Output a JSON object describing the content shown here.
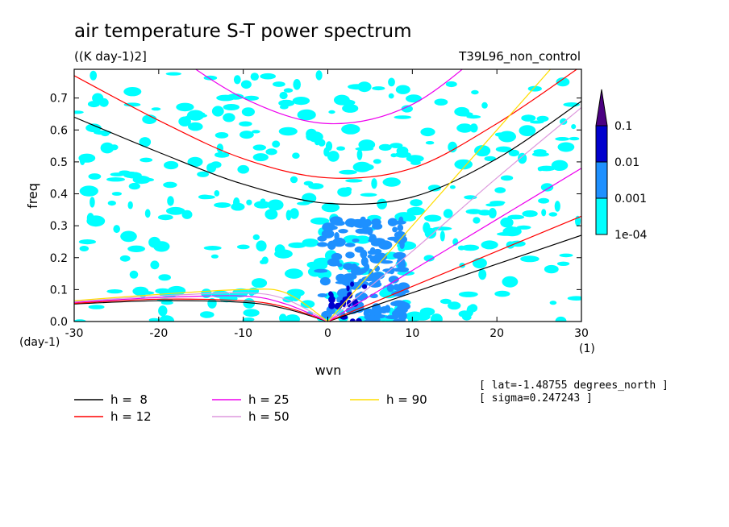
{
  "header": {
    "title": "air temperature S-T power spectrum",
    "units": "((K day-1)2]",
    "experiment": "T39L96_non_control"
  },
  "info": {
    "lat": "[ lat=-1.48755 degrees_north ]",
    "sigma": "[ sigma=0.247243 ]"
  },
  "colors": {
    "shade_1e-04": "#00ffff",
    "shade_0.001": "#1e90ff",
    "shade_0.01": "#0000cd",
    "shade_0.1": "#4b0082",
    "h8": "#000000",
    "h12": "#ff0000",
    "h25": "#ee00ee",
    "h50": "#dd99dd",
    "h90": "#ffdd00"
  },
  "chart_data": {
    "type": "heatmap",
    "title": "air temperature S-T power spectrum",
    "xlabel": "wvn",
    "ylabel": "freq",
    "x_unit_label": "(1)",
    "y_unit_label": "(day-1)",
    "xlim": [
      -30,
      30
    ],
    "ylim": [
      0,
      0.79
    ],
    "x_ticks": [
      -30,
      -20,
      -10,
      0,
      10,
      20,
      30
    ],
    "x_tick_labels": [
      "-30",
      "-20",
      "-10",
      "0",
      "10",
      "20",
      "30"
    ],
    "y_ticks": [
      0,
      0.1,
      0.2,
      0.3,
      0.4,
      0.5,
      0.6,
      0.7
    ],
    "y_tick_labels": [
      "0.0",
      "0.1",
      "0.2",
      "0.3",
      "0.4",
      "0.5",
      "0.6",
      "0.7"
    ],
    "colorbar": {
      "levels": [
        "1e-04",
        "0.001",
        "0.01",
        "0.1"
      ],
      "colors": [
        "#00ffff",
        "#1e90ff",
        "#0000cd",
        "#4b0082"
      ]
    },
    "series": [
      {
        "name": "h =  8",
        "legend": "h =  8",
        "color": "#000000",
        "h": 8
      },
      {
        "name": "h = 12",
        "legend": "h = 12",
        "color": "#ff0000",
        "h": 12
      },
      {
        "name": "h = 25",
        "legend": "h = 25",
        "color": "#ee00ee",
        "h": 25
      },
      {
        "name": "h = 50",
        "legend": "h = 50",
        "color": "#dd99dd",
        "h": 50
      },
      {
        "name": "h = 90",
        "legend": "h = 90",
        "color": "#ffdd00",
        "h": 90
      }
    ],
    "dispersion_curves": [
      {
        "h": 8,
        "kelvin": [
          [
            0,
            0
          ],
          [
            10,
            0.09
          ],
          [
            20,
            0.18
          ],
          [
            30,
            0.27
          ]
        ],
        "ig": [
          [
            -30,
            0.64
          ],
          [
            -20,
            0.53
          ],
          [
            -10,
            0.43
          ],
          [
            0,
            0.37
          ],
          [
            10,
            0.39
          ],
          [
            20,
            0.51
          ],
          [
            30,
            0.69
          ]
        ],
        "mrg": [
          [
            -30,
            0.055
          ],
          [
            -20,
            0.065
          ],
          [
            -10,
            0.06
          ],
          [
            -5,
            0.04
          ],
          [
            0,
            0
          ]
        ]
      },
      {
        "h": 12,
        "kelvin": [
          [
            0,
            0
          ],
          [
            10,
            0.11
          ],
          [
            20,
            0.22
          ],
          [
            30,
            0.33
          ]
        ],
        "ig": [
          [
            -30,
            0.77
          ],
          [
            -20,
            0.63
          ],
          [
            -10,
            0.51
          ],
          [
            0,
            0.45
          ],
          [
            10,
            0.48
          ],
          [
            20,
            0.62
          ],
          [
            30,
            0.8
          ]
        ],
        "mrg": [
          [
            -30,
            0.057
          ],
          [
            -20,
            0.07
          ],
          [
            -10,
            0.065
          ],
          [
            -5,
            0.045
          ],
          [
            0,
            0
          ]
        ]
      },
      {
        "h": 25,
        "kelvin": [
          [
            0,
            0
          ],
          [
            10,
            0.16
          ],
          [
            20,
            0.32
          ],
          [
            30,
            0.48
          ]
        ],
        "ig": [
          [
            -20,
            0.87
          ],
          [
            -10,
            0.7
          ],
          [
            0,
            0.62
          ],
          [
            10,
            0.68
          ],
          [
            20,
            0.88
          ]
        ],
        "mrg": [
          [
            -30,
            0.06
          ],
          [
            -20,
            0.075
          ],
          [
            -10,
            0.08
          ],
          [
            -5,
            0.055
          ],
          [
            0,
            0
          ]
        ]
      },
      {
        "h": 50,
        "kelvin": [
          [
            0,
            0
          ],
          [
            10,
            0.22
          ],
          [
            20,
            0.45
          ],
          [
            30,
            0.67
          ]
        ],
        "ig": [
          [
            -10,
            0.9
          ],
          [
            0,
            0.8
          ],
          [
            10,
            0.9
          ]
        ],
        "mrg": [
          [
            -30,
            0.062
          ],
          [
            -20,
            0.08
          ],
          [
            -10,
            0.09
          ],
          [
            -5,
            0.07
          ],
          [
            0,
            0
          ]
        ]
      },
      {
        "h": 90,
        "kelvin": [
          [
            0,
            0
          ],
          [
            10,
            0.3
          ],
          [
            20,
            0.6
          ],
          [
            30,
            0.9
          ]
        ],
        "ig": [
          [
            -5,
            0.9
          ],
          [
            0,
            0.83
          ],
          [
            5,
            0.9
          ]
        ],
        "mrg": [
          [
            -30,
            0.065
          ],
          [
            -20,
            0.085
          ],
          [
            -10,
            0.1
          ],
          [
            -5,
            0.09
          ],
          [
            0,
            0
          ]
        ]
      }
    ]
  }
}
